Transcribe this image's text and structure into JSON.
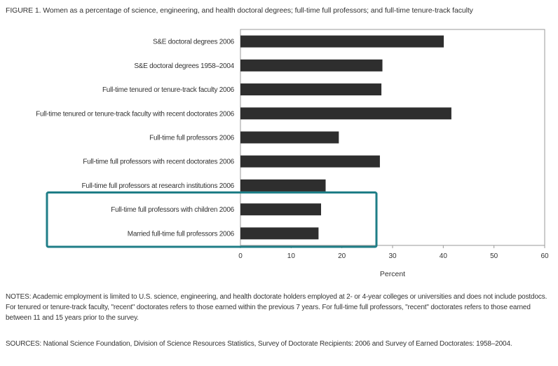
{
  "figure": {
    "title": "FIGURE 1.  Women as a percentage of science, engineering, and health doctoral degrees; full-time full professors; and full-time tenure-track faculty",
    "notes": "NOTES:  Academic employment is limited to U.S. science, engineering, and health doctorate holders employed at 2- or 4-year colleges or universities and does not include postdocs. For tenured or tenure-track faculty, \"recent\" doctorates refers to those earned within the previous 7 years. For full-time full professors, \"recent\" doctorates refers to those earned between 11 and 15 years prior to the survey.",
    "sources": "SOURCES:  National Science Foundation, Division of Science Resources Statistics, Survey of Doctorate Recipients: 2006 and Survey of Earned Doctorates: 1958–2004."
  },
  "chart_data": {
    "type": "bar",
    "orientation": "horizontal",
    "categories": [
      "S&E doctoral degrees 2006",
      "S&E doctoral degrees 1958–2004",
      "Full-time tenured or tenure-track faculty 2006",
      "Full-time tenured or tenure-track faculty with recent doctorates 2006",
      "Full-time full professors 2006",
      "Full-time full professors with recent doctorates 2006",
      "Full-time full professors at research institutions 2006",
      "Full-time full professors with children 2006",
      "Married full-time full professors 2006"
    ],
    "values": [
      40.1,
      28.0,
      27.8,
      41.6,
      19.4,
      27.5,
      16.8,
      15.9,
      15.4
    ],
    "xlabel": "Percent",
    "xlim": [
      0,
      60
    ],
    "xticks": [
      0,
      10,
      20,
      30,
      40,
      50,
      60
    ],
    "grid": false,
    "bar_color": "#2e2e2e",
    "highlight": {
      "categories": [
        "Full-time full professors with children 2006",
        "Married full-time full professors 2006"
      ],
      "color": "#1f7e87"
    }
  }
}
